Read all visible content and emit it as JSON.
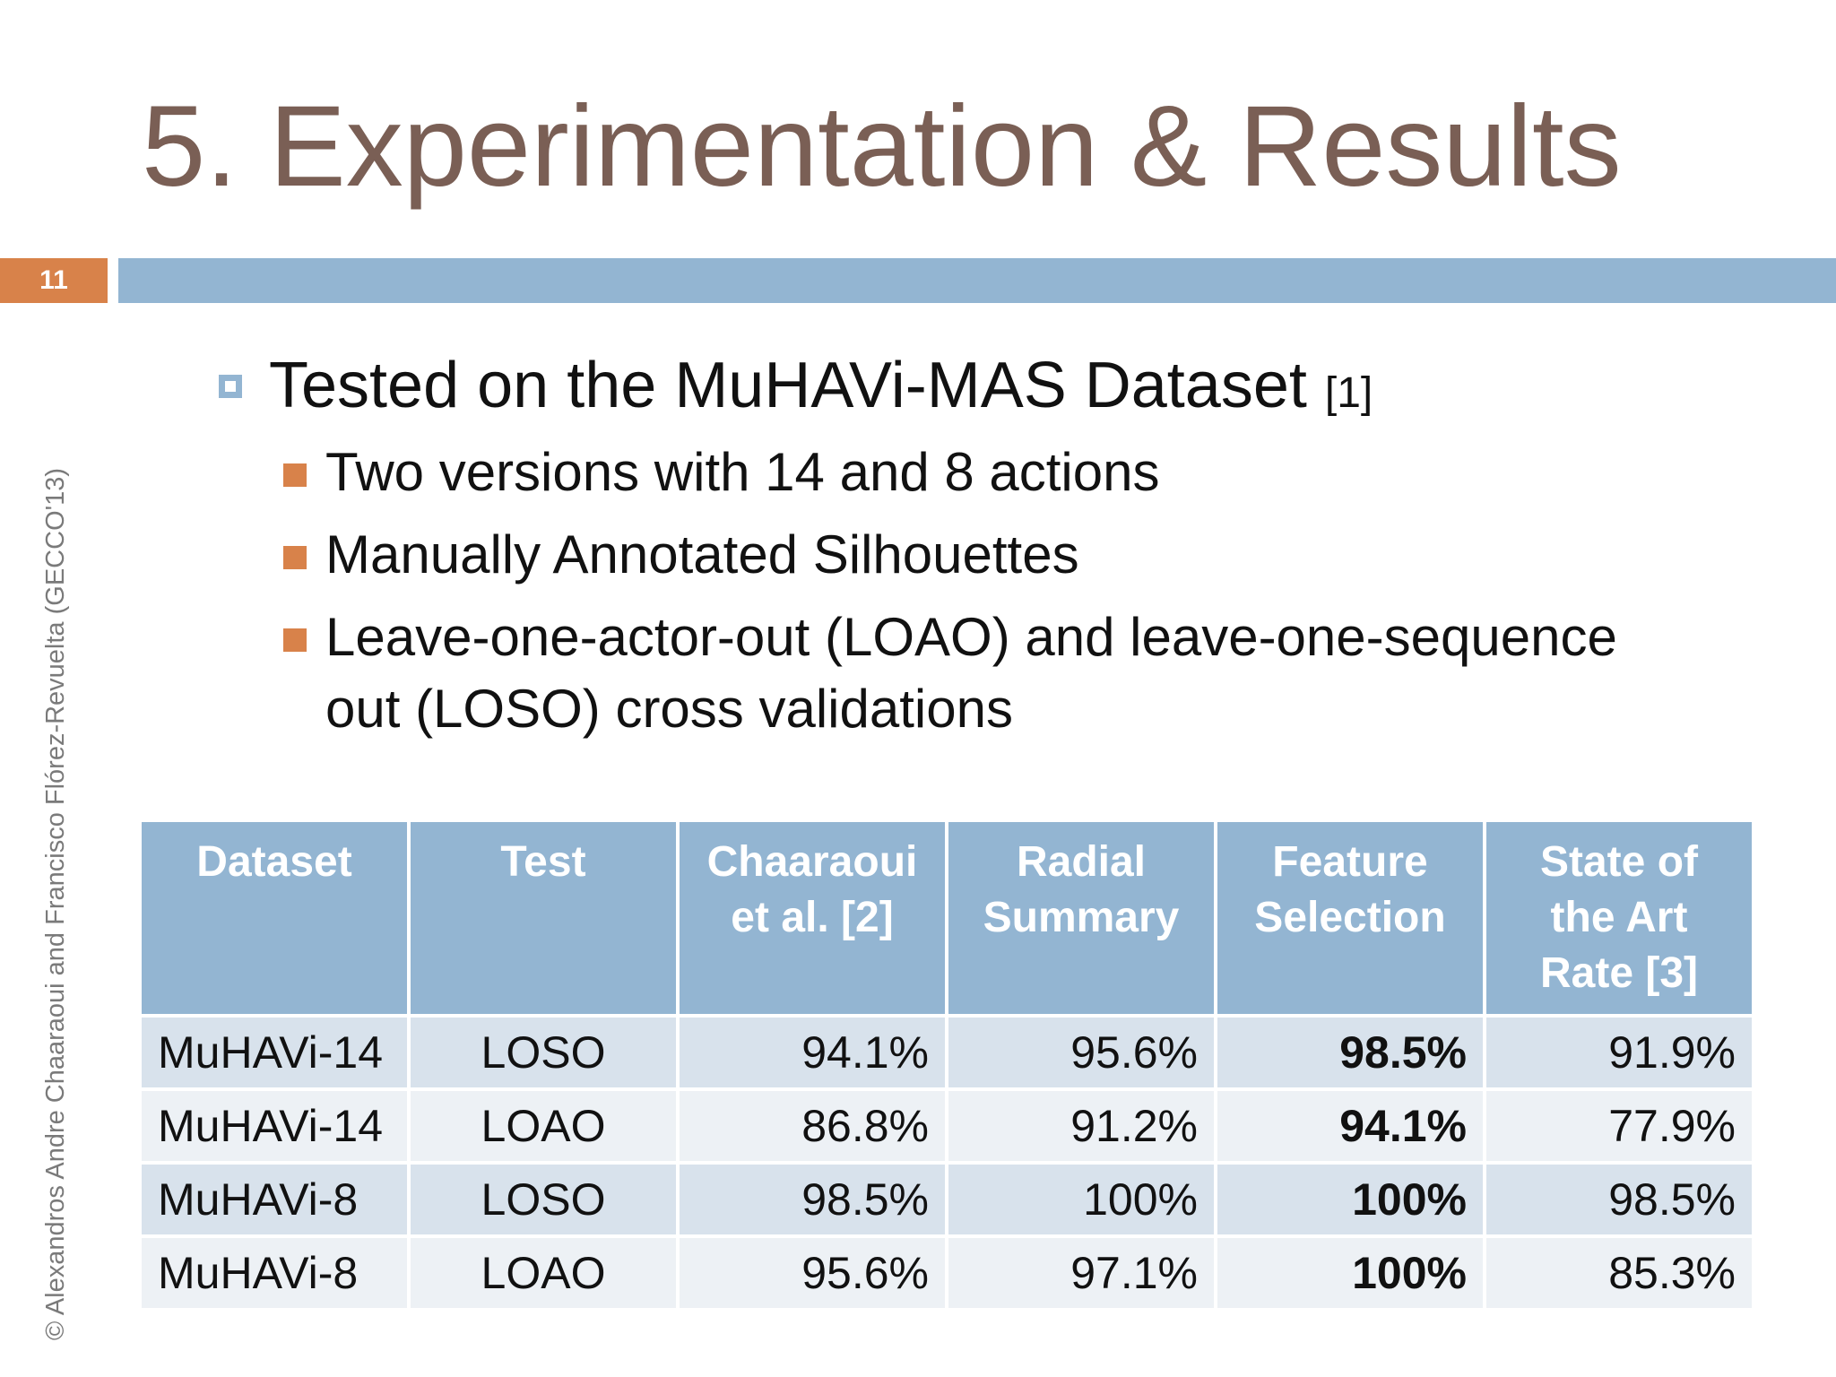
{
  "slide": {
    "title": "5. Experimentation & Results",
    "number": "11",
    "credit": "© Alexandros Andre Chaaraoui and Francisco Flórez-Revuelta (GECCO'13)"
  },
  "bullets": {
    "main": {
      "text": "Tested on the MuHAVi-MAS Dataset",
      "ref": "[1]"
    },
    "sub": [
      {
        "text": "Two versions with 14 and 8 actions"
      },
      {
        "text": "Manually Annotated Silhouettes"
      },
      {
        "line1": "Leave-one-actor-out (LOAO) and leave-one-sequence",
        "line2": "out (LOSO) cross validations"
      }
    ]
  },
  "table": {
    "headers": [
      {
        "line1": "Dataset",
        "line2": "",
        "line3": ""
      },
      {
        "line1": "Test",
        "line2": "",
        "line3": ""
      },
      {
        "line1": "Chaaraoui",
        "line2": "et al. [2]",
        "line3": ""
      },
      {
        "line1": "Radial",
        "line2": "Summary",
        "line3": ""
      },
      {
        "line1": "Feature",
        "line2": "Selection",
        "line3": ""
      },
      {
        "line1": "State of",
        "line2": "the Art",
        "line3": "Rate [3]"
      }
    ],
    "rows": [
      {
        "dataset": "MuHAVi-14",
        "test": "LOSO",
        "chaaraoui": "94.1%",
        "radial": "95.6%",
        "feature": "98.5%",
        "sota": "91.9%"
      },
      {
        "dataset": "MuHAVi-14",
        "test": "LOAO",
        "chaaraoui": "86.8%",
        "radial": "91.2%",
        "feature": "94.1%",
        "sota": "77.9%"
      },
      {
        "dataset": "MuHAVi-8",
        "test": "LOSO",
        "chaaraoui": "98.5%",
        "radial": "100%",
        "feature": "100%",
        "sota": "98.5%"
      },
      {
        "dataset": "MuHAVi-8",
        "test": "LOAO",
        "chaaraoui": "95.6%",
        "radial": "97.1%",
        "feature": "100%",
        "sota": "85.3%"
      }
    ]
  },
  "colors": {
    "title": "#7a5f55",
    "accent_orange": "#d8824a",
    "accent_blue": "#93b5d2",
    "row_dark": "#d8e2ec",
    "row_light": "#edf1f5"
  }
}
